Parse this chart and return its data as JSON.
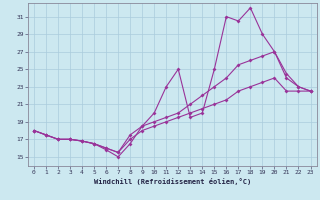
{
  "xlabel": "Windchill (Refroidissement éolien,°C)",
  "xlim": [
    -0.5,
    23.5
  ],
  "ylim": [
    14.0,
    32.5
  ],
  "xticks": [
    0,
    1,
    2,
    3,
    4,
    5,
    6,
    7,
    8,
    9,
    10,
    11,
    12,
    13,
    14,
    15,
    16,
    17,
    18,
    19,
    20,
    21,
    22,
    23
  ],
  "yticks": [
    15,
    17,
    19,
    21,
    23,
    25,
    27,
    29,
    31
  ],
  "bg_color": "#cce8f0",
  "grid_color": "#aaccdd",
  "line_color": "#993399",
  "line1_y": [
    18.0,
    17.5,
    17.0,
    17.0,
    16.8,
    16.5,
    15.8,
    15.0,
    16.5,
    18.5,
    20.0,
    23.0,
    25.0,
    19.5,
    20.0,
    25.0,
    31.0,
    30.5,
    32.0,
    29.0,
    27.0,
    24.5,
    23.0,
    22.5
  ],
  "line2_y": [
    18.0,
    17.5,
    17.0,
    17.0,
    16.8,
    16.5,
    16.0,
    15.5,
    17.5,
    18.5,
    19.0,
    19.5,
    20.0,
    21.0,
    22.0,
    23.0,
    24.0,
    25.5,
    26.0,
    26.5,
    27.0,
    24.0,
    23.0,
    22.5
  ],
  "line3_y": [
    18.0,
    17.5,
    17.0,
    17.0,
    16.8,
    16.5,
    16.0,
    15.5,
    17.0,
    18.0,
    18.5,
    19.0,
    19.5,
    20.0,
    20.5,
    21.0,
    21.5,
    22.5,
    23.0,
    23.5,
    24.0,
    22.5,
    22.5,
    22.5
  ]
}
